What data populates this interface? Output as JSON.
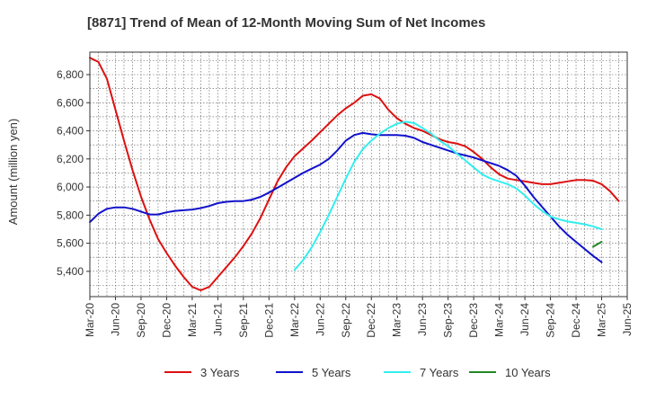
{
  "chart_data": {
    "type": "line",
    "title": "[8871]  Trend of Mean of 12-Month Moving Sum of Net Incomes",
    "xlabel": "",
    "ylabel": "Amount (million yen)",
    "ylim": [
      5220,
      6960
    ],
    "y_ticks": [
      5400,
      5600,
      5800,
      6000,
      6200,
      6400,
      6600,
      6800
    ],
    "y_tick_labels": [
      "5,400",
      "5,600",
      "5,800",
      "6,000",
      "6,200",
      "6,400",
      "6,600",
      "6,800"
    ],
    "x_range_months": [
      0,
      63
    ],
    "x_ticks": [
      {
        "m": 0,
        "label": "Mar-20"
      },
      {
        "m": 3,
        "label": "Jun-20"
      },
      {
        "m": 6,
        "label": "Sep-20"
      },
      {
        "m": 9,
        "label": "Dec-20"
      },
      {
        "m": 12,
        "label": "Mar-21"
      },
      {
        "m": 15,
        "label": "Jun-21"
      },
      {
        "m": 18,
        "label": "Sep-21"
      },
      {
        "m": 21,
        "label": "Dec-21"
      },
      {
        "m": 24,
        "label": "Mar-22"
      },
      {
        "m": 27,
        "label": "Jun-22"
      },
      {
        "m": 30,
        "label": "Sep-22"
      },
      {
        "m": 33,
        "label": "Dec-22"
      },
      {
        "m": 36,
        "label": "Mar-23"
      },
      {
        "m": 39,
        "label": "Jun-23"
      },
      {
        "m": 42,
        "label": "Sep-23"
      },
      {
        "m": 45,
        "label": "Dec-23"
      },
      {
        "m": 48,
        "label": "Mar-24"
      },
      {
        "m": 51,
        "label": "Jun-24"
      },
      {
        "m": 54,
        "label": "Sep-24"
      },
      {
        "m": 57,
        "label": "Dec-24"
      },
      {
        "m": 60,
        "label": "Mar-25"
      },
      {
        "m": 63,
        "label": "Jun-25"
      }
    ],
    "grid": true,
    "legend_position": "bottom",
    "series": [
      {
        "name": "3 Years",
        "color": "#dd1111",
        "points": [
          [
            0,
            6920
          ],
          [
            1,
            6890
          ],
          [
            2,
            6770
          ],
          [
            3,
            6550
          ],
          [
            4,
            6330
          ],
          [
            5,
            6120
          ],
          [
            6,
            5930
          ],
          [
            7,
            5770
          ],
          [
            8,
            5630
          ],
          [
            9,
            5530
          ],
          [
            10,
            5440
          ],
          [
            11,
            5360
          ],
          [
            12,
            5290
          ],
          [
            13,
            5265
          ],
          [
            14,
            5290
          ],
          [
            15,
            5360
          ],
          [
            16,
            5430
          ],
          [
            17,
            5500
          ],
          [
            18,
            5580
          ],
          [
            19,
            5670
          ],
          [
            20,
            5780
          ],
          [
            21,
            5910
          ],
          [
            22,
            6040
          ],
          [
            23,
            6140
          ],
          [
            24,
            6220
          ],
          [
            25,
            6275
          ],
          [
            26,
            6330
          ],
          [
            27,
            6390
          ],
          [
            28,
            6450
          ],
          [
            29,
            6510
          ],
          [
            30,
            6560
          ],
          [
            31,
            6600
          ],
          [
            32,
            6650
          ],
          [
            33,
            6660
          ],
          [
            34,
            6630
          ],
          [
            35,
            6550
          ],
          [
            36,
            6490
          ],
          [
            37,
            6450
          ],
          [
            38,
            6420
          ],
          [
            39,
            6400
          ],
          [
            40,
            6370
          ],
          [
            41,
            6340
          ],
          [
            42,
            6320
          ],
          [
            43,
            6310
          ],
          [
            44,
            6290
          ],
          [
            45,
            6250
          ],
          [
            46,
            6200
          ],
          [
            47,
            6140
          ],
          [
            48,
            6090
          ],
          [
            49,
            6060
          ],
          [
            50,
            6050
          ],
          [
            51,
            6040
          ],
          [
            52,
            6030
          ],
          [
            53,
            6020
          ],
          [
            54,
            6020
          ],
          [
            55,
            6030
          ],
          [
            56,
            6040
          ],
          [
            57,
            6050
          ],
          [
            58,
            6050
          ],
          [
            59,
            6045
          ],
          [
            60,
            6020
          ],
          [
            61,
            5970
          ],
          [
            62,
            5900
          ]
        ]
      },
      {
        "name": "5 Years",
        "color": "#1111cc",
        "points": [
          [
            0,
            5750
          ],
          [
            1,
            5810
          ],
          [
            2,
            5845
          ],
          [
            3,
            5855
          ],
          [
            4,
            5855
          ],
          [
            5,
            5845
          ],
          [
            6,
            5825
          ],
          [
            7,
            5805
          ],
          [
            8,
            5805
          ],
          [
            9,
            5820
          ],
          [
            10,
            5830
          ],
          [
            11,
            5835
          ],
          [
            12,
            5840
          ],
          [
            13,
            5850
          ],
          [
            14,
            5865
          ],
          [
            15,
            5885
          ],
          [
            16,
            5895
          ],
          [
            17,
            5900
          ],
          [
            18,
            5900
          ],
          [
            19,
            5910
          ],
          [
            20,
            5930
          ],
          [
            21,
            5960
          ],
          [
            22,
            5995
          ],
          [
            23,
            6030
          ],
          [
            24,
            6065
          ],
          [
            25,
            6100
          ],
          [
            26,
            6130
          ],
          [
            27,
            6160
          ],
          [
            28,
            6200
          ],
          [
            29,
            6260
          ],
          [
            30,
            6330
          ],
          [
            31,
            6370
          ],
          [
            32,
            6385
          ],
          [
            33,
            6375
          ],
          [
            34,
            6370
          ],
          [
            35,
            6370
          ],
          [
            36,
            6370
          ],
          [
            37,
            6365
          ],
          [
            38,
            6350
          ],
          [
            39,
            6320
          ],
          [
            40,
            6300
          ],
          [
            41,
            6280
          ],
          [
            42,
            6260
          ],
          [
            43,
            6240
          ],
          [
            44,
            6225
          ],
          [
            45,
            6210
          ],
          [
            46,
            6190
          ],
          [
            47,
            6170
          ],
          [
            48,
            6150
          ],
          [
            49,
            6120
          ],
          [
            50,
            6080
          ],
          [
            51,
            6010
          ],
          [
            52,
            5930
          ],
          [
            53,
            5860
          ],
          [
            54,
            5790
          ],
          [
            55,
            5720
          ],
          [
            56,
            5660
          ],
          [
            57,
            5610
          ],
          [
            58,
            5560
          ],
          [
            59,
            5510
          ],
          [
            60,
            5465
          ]
        ]
      },
      {
        "name": "7 Years",
        "color": "#33eeee",
        "points": [
          [
            24,
            5410
          ],
          [
            25,
            5480
          ],
          [
            26,
            5570
          ],
          [
            27,
            5680
          ],
          [
            28,
            5800
          ],
          [
            29,
            5930
          ],
          [
            30,
            6060
          ],
          [
            31,
            6180
          ],
          [
            32,
            6270
          ],
          [
            33,
            6330
          ],
          [
            34,
            6380
          ],
          [
            35,
            6420
          ],
          [
            36,
            6450
          ],
          [
            37,
            6465
          ],
          [
            38,
            6455
          ],
          [
            39,
            6420
          ],
          [
            40,
            6380
          ],
          [
            41,
            6330
          ],
          [
            42,
            6290
          ],
          [
            43,
            6240
          ],
          [
            44,
            6190
          ],
          [
            45,
            6140
          ],
          [
            46,
            6090
          ],
          [
            47,
            6060
          ],
          [
            48,
            6040
          ],
          [
            49,
            6020
          ],
          [
            50,
            5990
          ],
          [
            51,
            5940
          ],
          [
            52,
            5880
          ],
          [
            53,
            5830
          ],
          [
            54,
            5790
          ],
          [
            55,
            5770
          ],
          [
            56,
            5755
          ],
          [
            57,
            5745
          ],
          [
            58,
            5735
          ],
          [
            59,
            5720
          ],
          [
            60,
            5700
          ]
        ]
      },
      {
        "name": "10 Years",
        "color": "#228822",
        "points": [
          [
            59,
            5575
          ],
          [
            60,
            5610
          ]
        ]
      }
    ]
  }
}
